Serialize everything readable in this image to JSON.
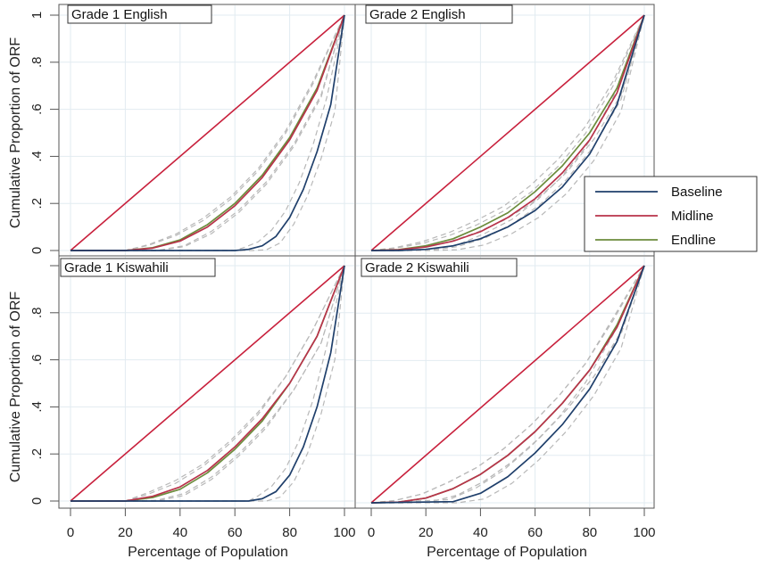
{
  "chart_data": {
    "type": "line",
    "ylabel": "Cumulative Proportion of ORF",
    "xlabel": "Percentage of Population",
    "x_ticks": [
      0,
      20,
      40,
      60,
      80,
      100
    ],
    "y_ticks": [
      0,
      0.2,
      0.4,
      0.6,
      0.8,
      1
    ],
    "y_tick_labels": [
      "0",
      ".2",
      ".4",
      ".6",
      ".8",
      "1"
    ],
    "xlim": [
      0,
      100
    ],
    "ylim": [
      0,
      1
    ],
    "grid": true,
    "legend": {
      "placement": "right",
      "entries": [
        "Baseline",
        "Midline",
        "Endline"
      ]
    },
    "colors": {
      "equality": "#c8203c",
      "Baseline": "#1f3f6b",
      "Midline": "#b8334a",
      "Endline": "#6b8c3c",
      "ci": "#b8b8b8",
      "grid": "#e2ebf1",
      "frame": "#555555"
    },
    "panels": [
      {
        "title": "Grade 1 English",
        "series": [
          {
            "name": "Baseline",
            "x": [
              0,
              60,
              65,
              70,
              75,
              80,
              85,
              90,
              95,
              100
            ],
            "y": [
              0,
              0,
              0.005,
              0.02,
              0.06,
              0.14,
              0.26,
              0.42,
              0.62,
              1
            ]
          },
          {
            "name": "Midline",
            "x": [
              0,
              20,
              30,
              40,
              50,
              60,
              70,
              80,
              90,
              100
            ],
            "y": [
              0,
              0,
              0.01,
              0.04,
              0.1,
              0.19,
              0.31,
              0.47,
              0.68,
              1
            ]
          },
          {
            "name": "Endline",
            "x": [
              0,
              20,
              30,
              40,
              50,
              60,
              70,
              80,
              90,
              100
            ],
            "y": [
              0,
              0,
              0.012,
              0.045,
              0.11,
              0.2,
              0.32,
              0.48,
              0.69,
              1
            ]
          }
        ]
      },
      {
        "title": "Grade 2 English",
        "series": [
          {
            "name": "Baseline",
            "x": [
              0,
              10,
              20,
              30,
              40,
              50,
              60,
              70,
              80,
              90,
              100
            ],
            "y": [
              0,
              0,
              0.005,
              0.02,
              0.05,
              0.1,
              0.17,
              0.27,
              0.41,
              0.62,
              1
            ]
          },
          {
            "name": "Midline",
            "x": [
              0,
              10,
              20,
              30,
              40,
              50,
              60,
              70,
              80,
              90,
              100
            ],
            "y": [
              0,
              0.003,
              0.015,
              0.04,
              0.08,
              0.14,
              0.22,
              0.33,
              0.47,
              0.67,
              1
            ]
          },
          {
            "name": "Endline",
            "x": [
              0,
              10,
              20,
              30,
              40,
              50,
              60,
              70,
              80,
              90,
              100
            ],
            "y": [
              0,
              0.004,
              0.02,
              0.05,
              0.1,
              0.16,
              0.25,
              0.36,
              0.5,
              0.69,
              1
            ]
          }
        ]
      },
      {
        "title": "Grade 1 Kiswahili",
        "series": [
          {
            "name": "Baseline",
            "x": [
              0,
              65,
              70,
              75,
              80,
              85,
              90,
              95,
              100
            ],
            "y": [
              0,
              0,
              0.01,
              0.04,
              0.11,
              0.23,
              0.4,
              0.63,
              1
            ]
          },
          {
            "name": "Midline",
            "x": [
              0,
              20,
              30,
              40,
              50,
              60,
              70,
              80,
              90,
              100
            ],
            "y": [
              0,
              0,
              0.02,
              0.06,
              0.13,
              0.23,
              0.35,
              0.5,
              0.7,
              1
            ]
          },
          {
            "name": "Endline",
            "x": [
              0,
              20,
              30,
              40,
              50,
              60,
              70,
              80,
              90,
              100
            ],
            "y": [
              0,
              0,
              0.015,
              0.05,
              0.12,
              0.22,
              0.34,
              0.5,
              0.7,
              1
            ]
          }
        ]
      },
      {
        "title": "Grade 2 Kiswahili",
        "series": [
          {
            "name": "Baseline",
            "x": [
              0,
              30,
              40,
              50,
              60,
              70,
              80,
              90,
              100
            ],
            "y": [
              0,
              0.005,
              0.04,
              0.11,
              0.21,
              0.33,
              0.48,
              0.68,
              1
            ]
          },
          {
            "name": "Midline",
            "x": [
              0,
              10,
              20,
              30,
              40,
              50,
              60,
              70,
              80,
              90,
              100
            ],
            "y": [
              0,
              0.003,
              0.02,
              0.06,
              0.12,
              0.2,
              0.3,
              0.42,
              0.56,
              0.74,
              1
            ]
          },
          {
            "name": "Endline",
            "x": [
              0,
              10,
              20,
              30,
              40,
              50,
              60,
              70,
              80,
              90,
              100
            ],
            "y": [
              0,
              0.003,
              0.02,
              0.06,
              0.12,
              0.2,
              0.3,
              0.42,
              0.56,
              0.75,
              1
            ]
          }
        ]
      }
    ]
  }
}
